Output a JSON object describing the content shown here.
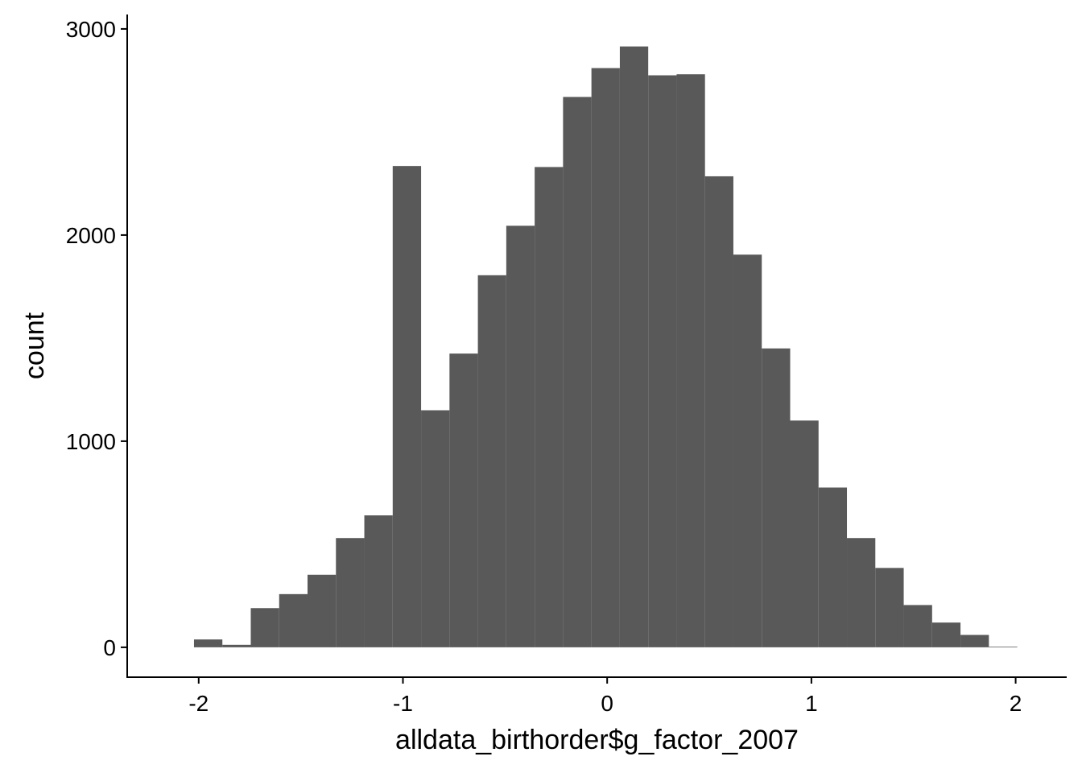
{
  "chart_data": {
    "type": "bar",
    "subtype": "histogram",
    "xlabel": "alldata_birthorder$g_factor_2007",
    "ylabel": "count",
    "bar_color": "#595959",
    "axis_color": "#000000",
    "background": "#ffffff",
    "grid": false,
    "xlim": [
      -2.35,
      2.25
    ],
    "ylim": [
      -145,
      3070
    ],
    "x_ticks": [
      {
        "value": -2,
        "label": "-2"
      },
      {
        "value": -1,
        "label": "-1"
      },
      {
        "value": 0,
        "label": "0"
      },
      {
        "value": 1,
        "label": "1"
      },
      {
        "value": 2,
        "label": "2"
      }
    ],
    "y_ticks": [
      {
        "value": 0,
        "label": "0"
      },
      {
        "value": 1000,
        "label": "1000"
      },
      {
        "value": 2000,
        "label": "2000"
      },
      {
        "value": 3000,
        "label": "3000"
      }
    ],
    "bins": [
      {
        "x0": -2.023,
        "x1": -1.884,
        "count": 38
      },
      {
        "x0": -1.884,
        "x1": -1.745,
        "count": 12
      },
      {
        "x0": -1.745,
        "x1": -1.606,
        "count": 190
      },
      {
        "x0": -1.606,
        "x1": -1.467,
        "count": 258
      },
      {
        "x0": -1.467,
        "x1": -1.328,
        "count": 352
      },
      {
        "x0": -1.328,
        "x1": -1.189,
        "count": 530
      },
      {
        "x0": -1.189,
        "x1": -1.05,
        "count": 640
      },
      {
        "x0": -1.05,
        "x1": -0.911,
        "count": 2335
      },
      {
        "x0": -0.911,
        "x1": -0.772,
        "count": 1150
      },
      {
        "x0": -0.772,
        "x1": -0.633,
        "count": 1425
      },
      {
        "x0": -0.633,
        "x1": -0.494,
        "count": 1805
      },
      {
        "x0": -0.494,
        "x1": -0.355,
        "count": 2045
      },
      {
        "x0": -0.355,
        "x1": -0.216,
        "count": 2330
      },
      {
        "x0": -0.216,
        "x1": -0.077,
        "count": 2670
      },
      {
        "x0": -0.077,
        "x1": 0.062,
        "count": 2810
      },
      {
        "x0": 0.062,
        "x1": 0.201,
        "count": 2915
      },
      {
        "x0": 0.201,
        "x1": 0.34,
        "count": 2775
      },
      {
        "x0": 0.34,
        "x1": 0.479,
        "count": 2780
      },
      {
        "x0": 0.479,
        "x1": 0.618,
        "count": 2285
      },
      {
        "x0": 0.618,
        "x1": 0.757,
        "count": 1905
      },
      {
        "x0": 0.757,
        "x1": 0.896,
        "count": 1450
      },
      {
        "x0": 0.896,
        "x1": 1.035,
        "count": 1100
      },
      {
        "x0": 1.035,
        "x1": 1.174,
        "count": 775
      },
      {
        "x0": 1.174,
        "x1": 1.313,
        "count": 530
      },
      {
        "x0": 1.313,
        "x1": 1.452,
        "count": 385
      },
      {
        "x0": 1.452,
        "x1": 1.591,
        "count": 205
      },
      {
        "x0": 1.591,
        "x1": 1.73,
        "count": 120
      },
      {
        "x0": 1.73,
        "x1": 1.869,
        "count": 60
      },
      {
        "x0": 1.869,
        "x1": 2.008,
        "count": 3
      }
    ]
  }
}
